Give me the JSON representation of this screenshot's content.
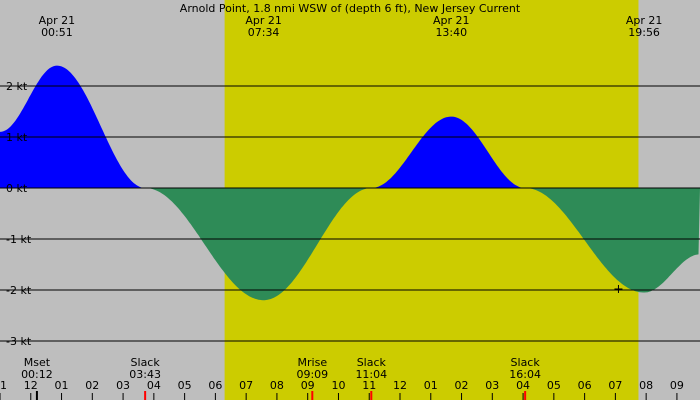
{
  "chart_data": {
    "type": "area",
    "title": "Arnold Point, 1.8 nmi WSW of (depth 6 ft), New Jersey Current",
    "ylim": [
      -3,
      2.75
    ],
    "xlim": [
      -1.0,
      21.75
    ],
    "grid": true,
    "colors": {
      "background": "#bebebe",
      "daylight": "#cccc00",
      "flood": "#0000ff",
      "ebb": "#2e8b57",
      "gridline": "#000000",
      "moonset_tick": "#000000",
      "event_tick": "#ff0000"
    },
    "daylight": {
      "start": 6.3,
      "end": 19.75
    },
    "y_ticks": [
      {
        "value": 2,
        "label": "2 kt"
      },
      {
        "value": 1,
        "label": "1 kt"
      },
      {
        "value": 0,
        "label": "0 kt"
      },
      {
        "value": -1,
        "label": "-1 kt"
      },
      {
        "value": -2,
        "label": "-2 kt"
      },
      {
        "value": -3,
        "label": "-3 kt"
      }
    ],
    "x_ticks": [
      {
        "hour": -1,
        "label": "11"
      },
      {
        "hour": 0,
        "label": "12"
      },
      {
        "hour": 1,
        "label": "01"
      },
      {
        "hour": 2,
        "label": "02"
      },
      {
        "hour": 3,
        "label": "03"
      },
      {
        "hour": 4,
        "label": "04"
      },
      {
        "hour": 5,
        "label": "05"
      },
      {
        "hour": 6,
        "label": "06"
      },
      {
        "hour": 7,
        "label": "07"
      },
      {
        "hour": 8,
        "label": "08"
      },
      {
        "hour": 9,
        "label": "09"
      },
      {
        "hour": 10,
        "label": "10"
      },
      {
        "hour": 11,
        "label": "11"
      },
      {
        "hour": 12,
        "label": "12"
      },
      {
        "hour": 13,
        "label": "01"
      },
      {
        "hour": 14,
        "label": "02"
      },
      {
        "hour": 15,
        "label": "03"
      },
      {
        "hour": 16,
        "label": "04"
      },
      {
        "hour": 17,
        "label": "05"
      },
      {
        "hour": 18,
        "label": "06"
      },
      {
        "hour": 19,
        "label": "07"
      },
      {
        "hour": 20,
        "label": "08"
      },
      {
        "hour": 21,
        "label": "09"
      }
    ],
    "top_labels": [
      {
        "hour": 0.85,
        "date": "Apr 21",
        "time": "00:51"
      },
      {
        "hour": 7.567,
        "date": "Apr 21",
        "time": "07:34"
      },
      {
        "hour": 13.667,
        "date": "Apr 21",
        "time": "13:40"
      },
      {
        "hour": 19.933,
        "date": "Apr 21",
        "time": "19:56"
      }
    ],
    "events": [
      {
        "hour": 0.2,
        "name": "Mset",
        "time": "00:12"
      },
      {
        "hour": 3.717,
        "name": "Slack",
        "time": "03:43"
      },
      {
        "hour": 9.15,
        "name": "Mrise",
        "time": "09:09"
      },
      {
        "hour": 11.067,
        "name": "Slack",
        "time": "11:04"
      },
      {
        "hour": 16.067,
        "name": "Slack",
        "time": "16:04"
      }
    ],
    "series": [
      {
        "x": [
          -1.0,
          0.85,
          3.717,
          7.567,
          11.067,
          13.667,
          16.067,
          19.933,
          21.75
        ],
        "y": [
          1.1,
          2.4,
          0,
          -2.2,
          0,
          1.4,
          0,
          -2.05,
          -1.3
        ]
      }
    ],
    "marker": {
      "hour": 19.1,
      "value": -1.98
    }
  }
}
